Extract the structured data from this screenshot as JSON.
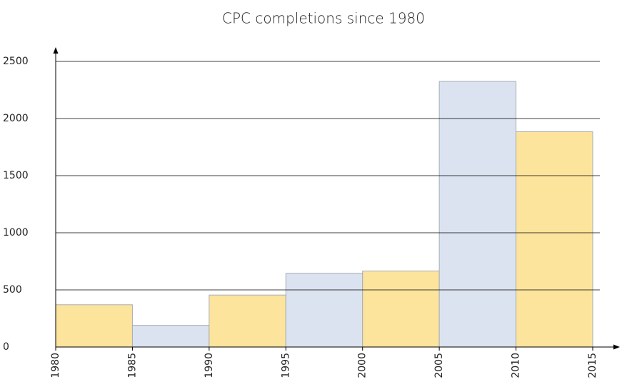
{
  "chart_data": {
    "type": "histogram",
    "title": "CPC completions since 1980",
    "bins": [
      1980,
      1985,
      1990,
      1995,
      2000,
      2005,
      2010,
      2015
    ],
    "values": [
      370,
      190,
      455,
      645,
      665,
      2325,
      1885
    ],
    "colors": [
      "#fde49c",
      "#dbe3f0",
      "#fde49c",
      "#dbe3f0",
      "#fde49c",
      "#dbe3f0",
      "#fde49c"
    ],
    "xlim": [
      1980,
      2015
    ],
    "xticks": [
      1980,
      1985,
      1990,
      1995,
      2000,
      2005,
      2010,
      2015
    ],
    "ylim": [
      0,
      2500
    ],
    "yticks": [
      0,
      500,
      1000,
      1500,
      2000,
      2500
    ],
    "grid": true
  }
}
